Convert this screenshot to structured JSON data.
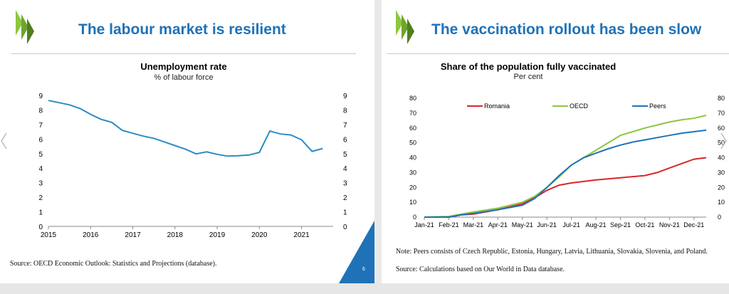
{
  "left_slide": {
    "title": "The labour market is resilient",
    "page_number": "6",
    "source": "Source: OECD Economic Outlook: Statistics and Projections (database).",
    "colors": {
      "title": "#1f72b8",
      "line": "#2b8cc4",
      "logo": "#8dc63f",
      "corner": "#1f72b8"
    }
  },
  "right_slide": {
    "title": "The vaccination rollout has been slow",
    "note": "Note: Peers consists of Czech Republic, Estonia, Hungary, Latvia, Lithuania, Slovakia, Slovenia, and Poland.",
    "source": "Source: Calculations based on Our World in Data database."
  },
  "chart_data": [
    {
      "type": "line",
      "title": "Unemployment rate",
      "subtitle": "% of labour force",
      "xlabel": "",
      "ylabel": "",
      "ylim": [
        0,
        9
      ],
      "y_ticks": [
        "0",
        "1",
        "2",
        "3",
        "4",
        "5",
        "6",
        "7",
        "8",
        "9"
      ],
      "x_tick_labels": [
        "2015",
        "2016",
        "2017",
        "2018",
        "2019",
        "2020",
        "2021"
      ],
      "dual_axis": true,
      "grid": false,
      "series": [
        {
          "color": "#2b8cc4",
          "points": [
            [
              2015.0,
              8.65
            ],
            [
              2015.25,
              8.5
            ],
            [
              2015.5,
              8.35
            ],
            [
              2015.75,
              8.1
            ],
            [
              2016.0,
              7.7
            ],
            [
              2016.25,
              7.35
            ],
            [
              2016.5,
              7.15
            ],
            [
              2016.75,
              6.6
            ],
            [
              2017.0,
              6.4
            ],
            [
              2017.25,
              6.2
            ],
            [
              2017.5,
              6.05
            ],
            [
              2017.75,
              5.8
            ],
            [
              2018.0,
              5.55
            ],
            [
              2018.25,
              5.3
            ],
            [
              2018.5,
              4.98
            ],
            [
              2018.75,
              5.12
            ],
            [
              2019.0,
              4.95
            ],
            [
              2019.25,
              4.83
            ],
            [
              2019.5,
              4.85
            ],
            [
              2019.75,
              4.9
            ],
            [
              2020.0,
              5.08
            ],
            [
              2020.25,
              6.55
            ],
            [
              2020.5,
              6.35
            ],
            [
              2020.75,
              6.28
            ],
            [
              2021.0,
              5.95
            ],
            [
              2021.25,
              5.15
            ],
            [
              2021.5,
              5.35
            ]
          ]
        }
      ]
    },
    {
      "type": "line",
      "title": "Share of the population fully vaccinated",
      "subtitle": "Per cent",
      "xlabel": "",
      "ylabel": "",
      "ylim": [
        0,
        80
      ],
      "y_ticks": [
        "0",
        "10",
        "20",
        "30",
        "40",
        "50",
        "60",
        "70",
        "80"
      ],
      "x_tick_labels": [
        "Jan-21",
        "Feb-21",
        "Mar-21",
        "Apr-21",
        "May-21",
        "Jun-21",
        "Jul-21",
        "Aug-21",
        "Sep-21",
        "Oct-21",
        "Nov-21",
        "Dec-21"
      ],
      "dual_axis": true,
      "grid": false,
      "legend_position": "top",
      "series": [
        {
          "name": "Romania",
          "color": "#d9262c",
          "points": [
            [
              0,
              0
            ],
            [
              1,
              0
            ],
            [
              1.5,
              1.5
            ],
            [
              2,
              2
            ],
            [
              3,
              5
            ],
            [
              4,
              9
            ],
            [
              4.5,
              13
            ],
            [
              5,
              18
            ],
            [
              5.5,
              21.5
            ],
            [
              6,
              23
            ],
            [
              7,
              25
            ],
            [
              8,
              26.5
            ],
            [
              9,
              28
            ],
            [
              9.5,
              30
            ],
            [
              10,
              33
            ],
            [
              10.5,
              36
            ],
            [
              11,
              39
            ],
            [
              11.5,
              40
            ]
          ]
        },
        {
          "name": "OECD",
          "color": "#8dc63f",
          "points": [
            [
              0,
              0
            ],
            [
              1,
              0.5
            ],
            [
              1.5,
              2
            ],
            [
              2,
              3.5
            ],
            [
              3,
              6
            ],
            [
              4,
              10
            ],
            [
              4.5,
              14
            ],
            [
              5,
              20
            ],
            [
              5.5,
              27
            ],
            [
              6,
              35
            ],
            [
              6.5,
              40
            ],
            [
              7,
              45
            ],
            [
              7.5,
              50
            ],
            [
              8,
              55
            ],
            [
              8.5,
              57.5
            ],
            [
              9,
              60
            ],
            [
              9.5,
              62
            ],
            [
              10,
              64
            ],
            [
              10.5,
              65.5
            ],
            [
              11,
              66.5
            ],
            [
              11.5,
              68.5
            ]
          ]
        },
        {
          "name": "Peers",
          "color": "#1f72b8",
          "points": [
            [
              0,
              0
            ],
            [
              1,
              0
            ],
            [
              1.5,
              1.5
            ],
            [
              2,
              2.5
            ],
            [
              3,
              5
            ],
            [
              4,
              8
            ],
            [
              4.5,
              12.5
            ],
            [
              5,
              20
            ],
            [
              5.5,
              28
            ],
            [
              6,
              35
            ],
            [
              6.5,
              40
            ],
            [
              7,
              43
            ],
            [
              7.5,
              46
            ],
            [
              8,
              48.5
            ],
            [
              8.5,
              50.5
            ],
            [
              9,
              52
            ],
            [
              9.5,
              53.5
            ],
            [
              10,
              55
            ],
            [
              10.5,
              56.5
            ],
            [
              11,
              57.5
            ],
            [
              11.5,
              58.5
            ]
          ]
        }
      ]
    }
  ]
}
